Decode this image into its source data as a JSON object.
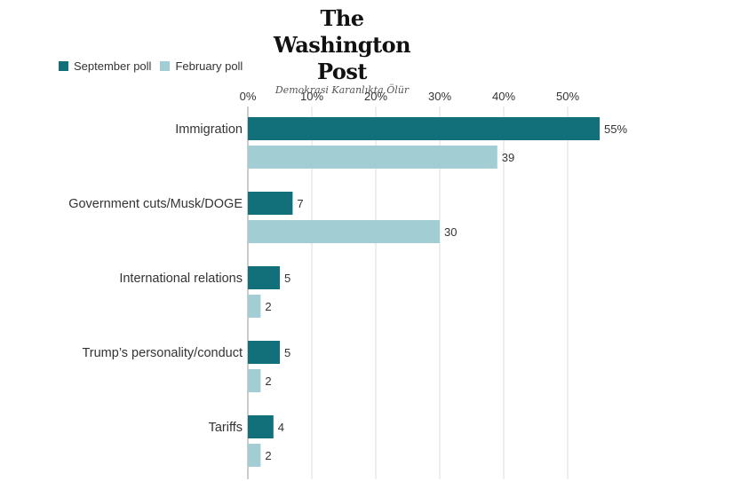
{
  "header": {
    "masthead": "The Washington Post",
    "tagline": "Demokrasi Karanlıkta Ölür"
  },
  "colors": {
    "september": "#11707a",
    "february": "#a2cdd3",
    "grid": "#dddddd",
    "axis": "#999999"
  },
  "chart_data": {
    "type": "bar",
    "orientation": "horizontal",
    "title": "",
    "xlabel": "",
    "ylabel": "",
    "xlim": [
      0,
      55
    ],
    "ticks": [
      0,
      10,
      20,
      30,
      40,
      50
    ],
    "tick_labels": [
      "0%",
      "10%",
      "20%",
      "30%",
      "40%",
      "50%"
    ],
    "grid": true,
    "legend": "top-left",
    "categories": [
      "Immigration",
      "Government cuts/Musk/DOGE",
      "International relations",
      "Trump’s personality/conduct",
      "Tariffs"
    ],
    "series": [
      {
        "name": "September poll",
        "values": [
          55,
          7,
          5,
          5,
          4
        ],
        "labels": [
          "55%",
          "7",
          "5",
          "5",
          "4"
        ]
      },
      {
        "name": "February poll",
        "values": [
          39,
          30,
          2,
          2,
          2
        ],
        "labels": [
          "39",
          "30",
          "2",
          "2",
          "2"
        ]
      }
    ]
  }
}
